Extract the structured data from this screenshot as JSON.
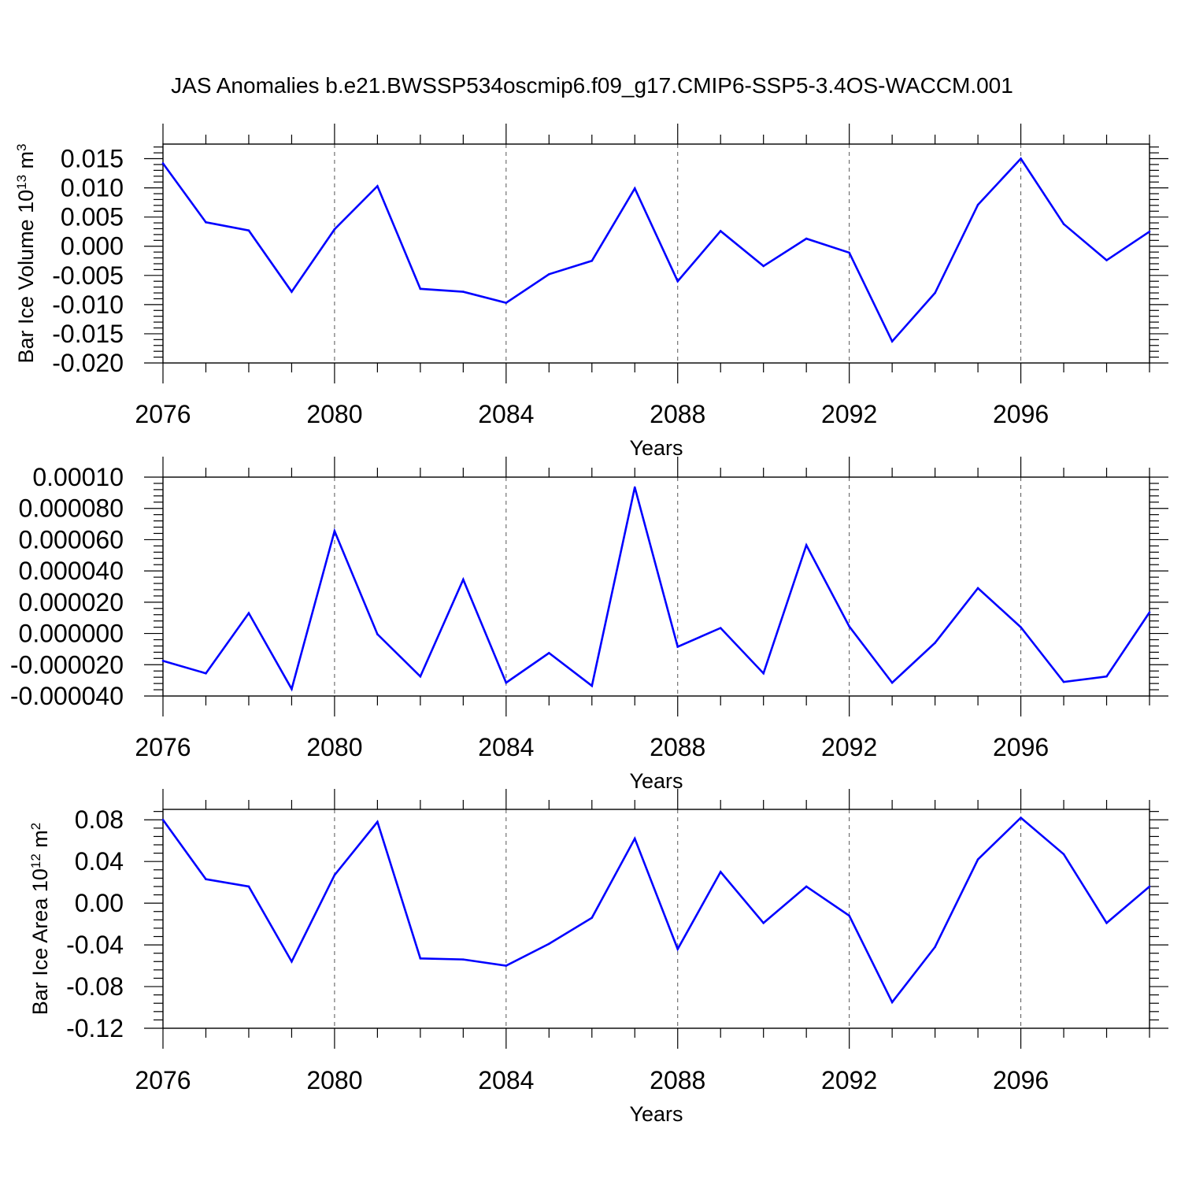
{
  "title": "JAS Anomalies b.e21.BWSSP534oscmip6.f09_g17.CMIP6-SSP5-3.4OS-WACCM.001",
  "colors": {
    "line": "#0000ff",
    "frame": "#000000",
    "grid": "#555555"
  },
  "chart_data": [
    {
      "type": "line",
      "ylabel": "Bar Ice Volume 10",
      "ylabel_exp": "13",
      "ylabel_unit": " m",
      "ylabel_unit_exp": "3",
      "xlabel": "Years",
      "xlim": [
        2076,
        2099
      ],
      "ylim": [
        -0.02,
        0.0175
      ],
      "xticks": [
        "2076",
        "2080",
        "2084",
        "2088",
        "2092",
        "2096"
      ],
      "yticks": [
        "0.015",
        "0.010",
        "0.005",
        "0.000",
        "-0.005",
        "-0.010",
        "-0.015",
        "-0.020"
      ],
      "grid": "vertical dashed at major x ticks",
      "x": [
        2076,
        2077,
        2078,
        2079,
        2080,
        2081,
        2082,
        2083,
        2084,
        2085,
        2086,
        2087,
        2088,
        2089,
        2090,
        2091,
        2092,
        2093,
        2094,
        2095,
        2096,
        2097,
        2098,
        2099
      ],
      "series": [
        {
          "values": [
            0.0142,
            0.0041,
            0.0027,
            -0.0078,
            0.0029,
            0.0103,
            -0.0073,
            -0.0078,
            -0.0097,
            -0.0048,
            -0.0025,
            0.0099,
            -0.006,
            0.0026,
            -0.0034,
            0.0013,
            -0.0011,
            -0.0163,
            -0.008,
            0.0071,
            0.015,
            0.0038,
            -0.0024,
            0.0025
          ]
        }
      ]
    },
    {
      "type": "line",
      "ylabel": "",
      "xlabel": "Years",
      "xlim": [
        2076,
        2099
      ],
      "ylim": [
        -4e-05,
        0.0001
      ],
      "xticks": [
        "2076",
        "2080",
        "2084",
        "2088",
        "2092",
        "2096"
      ],
      "yticks": [
        "0.00010",
        "0.000080",
        "0.000060",
        "0.000040",
        "0.000020",
        "0.000000",
        "-0.000020",
        "-0.000040"
      ],
      "grid": "vertical dashed at major x ticks",
      "x": [
        2076,
        2077,
        2078,
        2079,
        2080,
        2081,
        2082,
        2083,
        2084,
        2085,
        2086,
        2087,
        2088,
        2089,
        2090,
        2091,
        2092,
        2093,
        2094,
        2095,
        2096,
        2097,
        2098,
        2099
      ],
      "series": [
        {
          "values": [
            -1.75e-05,
            -2.55e-05,
            1.3e-05,
            -3.55e-05,
            6.55e-05,
            -5e-07,
            -2.75e-05,
            3.45e-05,
            -3.15e-05,
            -1.25e-05,
            -3.35e-05,
            9.35e-05,
            -8.5e-06,
            3.5e-06,
            -2.55e-05,
            5.65e-05,
            4.5e-06,
            -3.15e-05,
            -6e-06,
            2.9e-05,
            4e-06,
            -3.1e-05,
            -2.75e-05,
            1.35e-05
          ]
        }
      ]
    },
    {
      "type": "line",
      "ylabel": "Bar Ice Area 10",
      "ylabel_exp": "12",
      "ylabel_unit": " m",
      "ylabel_unit_exp": "2",
      "xlabel": "Years",
      "xlim": [
        2076,
        2099
      ],
      "ylim": [
        -0.12,
        0.09
      ],
      "xticks": [
        "2076",
        "2080",
        "2084",
        "2088",
        "2092",
        "2096"
      ],
      "yticks": [
        "0.08",
        "0.04",
        "0.00",
        "-0.04",
        "-0.08",
        "-0.12"
      ],
      "grid": "vertical dashed at major x ticks",
      "x": [
        2076,
        2077,
        2078,
        2079,
        2080,
        2081,
        2082,
        2083,
        2084,
        2085,
        2086,
        2087,
        2088,
        2089,
        2090,
        2091,
        2092,
        2093,
        2094,
        2095,
        2096,
        2097,
        2098,
        2099
      ],
      "series": [
        {
          "values": [
            0.08,
            0.023,
            0.016,
            -0.056,
            0.027,
            0.078,
            -0.053,
            -0.054,
            -0.06,
            -0.039,
            -0.014,
            0.062,
            -0.044,
            0.03,
            -0.019,
            0.016,
            -0.012,
            -0.095,
            -0.042,
            0.042,
            0.082,
            0.047,
            -0.019,
            0.016
          ]
        }
      ]
    }
  ]
}
